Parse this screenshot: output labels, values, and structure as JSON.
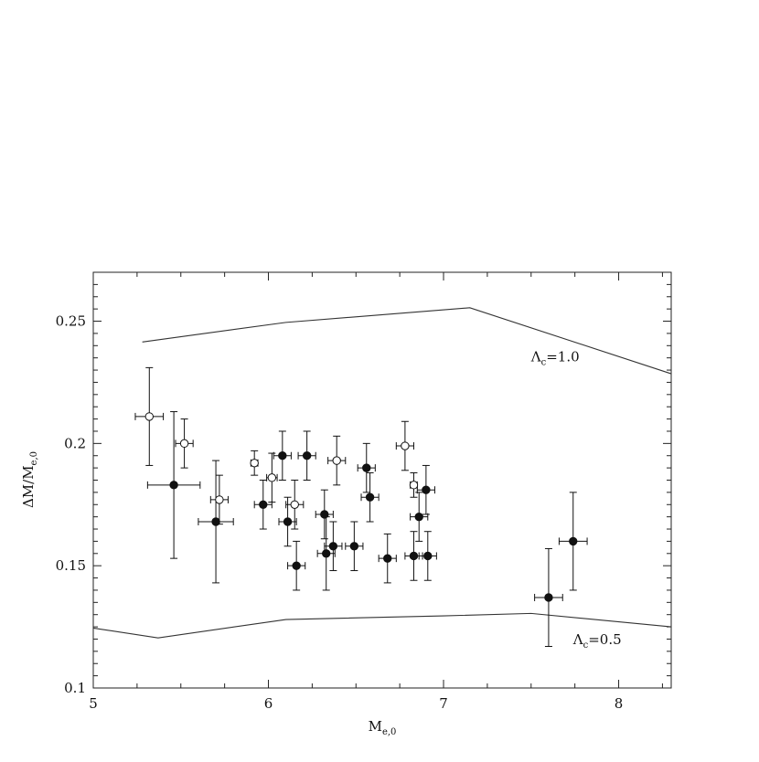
{
  "chart_data": {
    "type": "scatter",
    "title": "",
    "xlabel_main": "M",
    "xlabel_sub": "e,0",
    "ylabel_main": "ΔM/M",
    "ylabel_sub": "e,0",
    "xlim": [
      5,
      8.3
    ],
    "ylim": [
      0.1,
      0.27
    ],
    "x_ticks": [
      5,
      6,
      7,
      8
    ],
    "x_tick_labels": [
      "5",
      "6",
      "7",
      "8"
    ],
    "y_ticks": [
      0.1,
      0.15,
      0.2,
      0.25
    ],
    "y_tick_labels": [
      "0.1",
      "0.15",
      "0.2",
      "0.25"
    ],
    "grid": false,
    "series": [
      {
        "marker": "filled-circle",
        "points": [
          {
            "x": 5.46,
            "y": 0.183,
            "xerr": 0.15,
            "yerr": 0.03
          },
          {
            "x": 5.7,
            "y": 0.168,
            "xerr": 0.1,
            "yerr": 0.025
          },
          {
            "x": 5.97,
            "y": 0.175,
            "xerr": 0.05,
            "yerr": 0.01
          },
          {
            "x": 6.08,
            "y": 0.195,
            "xerr": 0.05,
            "yerr": 0.01
          },
          {
            "x": 6.11,
            "y": 0.168,
            "xerr": 0.05,
            "yerr": 0.01
          },
          {
            "x": 6.16,
            "y": 0.15,
            "xerr": 0.05,
            "yerr": 0.01
          },
          {
            "x": 6.22,
            "y": 0.195,
            "xerr": 0.05,
            "yerr": 0.01
          },
          {
            "x": 6.32,
            "y": 0.171,
            "xerr": 0.05,
            "yerr": 0.01
          },
          {
            "x": 6.33,
            "y": 0.155,
            "xerr": 0.05,
            "yerr": 0.015
          },
          {
            "x": 6.37,
            "y": 0.158,
            "xerr": 0.05,
            "yerr": 0.01
          },
          {
            "x": 6.49,
            "y": 0.158,
            "xerr": 0.05,
            "yerr": 0.01
          },
          {
            "x": 6.56,
            "y": 0.19,
            "xerr": 0.05,
            "yerr": 0.01
          },
          {
            "x": 6.58,
            "y": 0.178,
            "xerr": 0.05,
            "yerr": 0.01
          },
          {
            "x": 6.68,
            "y": 0.153,
            "xerr": 0.05,
            "yerr": 0.01
          },
          {
            "x": 6.83,
            "y": 0.154,
            "xerr": 0.05,
            "yerr": 0.01
          },
          {
            "x": 6.86,
            "y": 0.17,
            "xerr": 0.05,
            "yerr": 0.01
          },
          {
            "x": 6.9,
            "y": 0.181,
            "xerr": 0.05,
            "yerr": 0.01
          },
          {
            "x": 6.91,
            "y": 0.154,
            "xerr": 0.05,
            "yerr": 0.01
          },
          {
            "x": 7.6,
            "y": 0.137,
            "xerr": 0.08,
            "yerr": 0.02
          },
          {
            "x": 7.74,
            "y": 0.16,
            "xerr": 0.08,
            "yerr": 0.02
          }
        ]
      },
      {
        "marker": "open-circle",
        "points": [
          {
            "x": 5.32,
            "y": 0.211,
            "xerr": 0.08,
            "yerr": 0.02
          },
          {
            "x": 5.52,
            "y": 0.2,
            "xerr": 0.05,
            "yerr": 0.01
          },
          {
            "x": 5.72,
            "y": 0.177,
            "xerr": 0.05,
            "yerr": 0.01
          },
          {
            "x": 5.92,
            "y": 0.192,
            "xerr": 0.02,
            "yerr": 0.005
          },
          {
            "x": 6.02,
            "y": 0.186,
            "xerr": 0.03,
            "yerr": 0.01
          },
          {
            "x": 6.15,
            "y": 0.175,
            "xerr": 0.05,
            "yerr": 0.01
          },
          {
            "x": 6.39,
            "y": 0.193,
            "xerr": 0.05,
            "yerr": 0.01
          },
          {
            "x": 6.78,
            "y": 0.199,
            "xerr": 0.05,
            "yerr": 0.01
          },
          {
            "x": 6.83,
            "y": 0.183,
            "xerr": 0.02,
            "yerr": 0.005
          }
        ]
      }
    ],
    "curves": [
      {
        "label_main": "Λ",
        "label_sub": "c",
        "label_tail": "=1.0",
        "x": [
          5.28,
          6.1,
          7.15,
          8.3
        ],
        "y": [
          0.2415,
          0.2495,
          0.2555,
          0.2285
        ]
      },
      {
        "label_main": "Λ",
        "label_sub": "c",
        "label_tail": "=0.5",
        "x": [
          5.0,
          5.37,
          6.1,
          7.0,
          7.5,
          8.3
        ],
        "y": [
          0.1245,
          0.1205,
          0.128,
          0.1295,
          0.1305,
          0.125
        ]
      }
    ]
  }
}
